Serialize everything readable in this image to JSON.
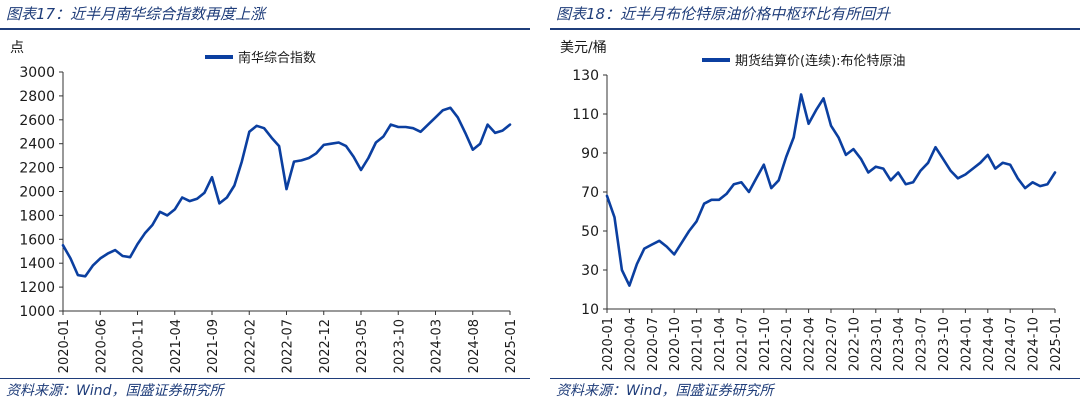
{
  "colors": {
    "accent": "#1f3d7a",
    "series": "#0b3fa0"
  },
  "panels": [
    {
      "title": "图表17：近半月南华综合指数再度上涨",
      "unit": "点",
      "source": "资料来源：Wind，国盛证券研究所"
    },
    {
      "title": "图表18：近半月布伦特原油价格中枢环比有所回升",
      "unit": "美元/桶",
      "source": "资料来源：Wind，国盛证券研究所"
    }
  ],
  "chart_data": [
    {
      "type": "line",
      "title": "",
      "xlabel": "",
      "ylabel": "点",
      "ylim": [
        1000,
        3000
      ],
      "yticks": [
        1000,
        1200,
        1400,
        1600,
        1800,
        2000,
        2200,
        2400,
        2600,
        2800,
        3000
      ],
      "xlim": [
        "2020-01",
        "2025-01"
      ],
      "xticks": [
        "2020-01",
        "2020-06",
        "2020-11",
        "2021-04",
        "2021-09",
        "2022-02",
        "2022-07",
        "2022-12",
        "2023-05",
        "2023-10",
        "2024-03",
        "2024-08",
        "2025-01"
      ],
      "legend": "top-center",
      "grid": false,
      "series": [
        {
          "name": "南华综合指数",
          "x": [
            "2020-01",
            "2020-02",
            "2020-03",
            "2020-04",
            "2020-05",
            "2020-06",
            "2020-07",
            "2020-08",
            "2020-09",
            "2020-10",
            "2020-11",
            "2020-12",
            "2021-01",
            "2021-02",
            "2021-03",
            "2021-04",
            "2021-05",
            "2021-06",
            "2021-07",
            "2021-08",
            "2021-09",
            "2021-10",
            "2021-11",
            "2021-12",
            "2022-01",
            "2022-02",
            "2022-03",
            "2022-04",
            "2022-05",
            "2022-06",
            "2022-07",
            "2022-08",
            "2022-09",
            "2022-10",
            "2022-11",
            "2022-12",
            "2023-01",
            "2023-02",
            "2023-03",
            "2023-04",
            "2023-05",
            "2023-06",
            "2023-07",
            "2023-08",
            "2023-09",
            "2023-10",
            "2023-11",
            "2023-12",
            "2024-01",
            "2024-02",
            "2024-03",
            "2024-04",
            "2024-05",
            "2024-06",
            "2024-07",
            "2024-08",
            "2024-09",
            "2024-10",
            "2024-11",
            "2024-12",
            "2025-01"
          ],
          "y": [
            1550,
            1440,
            1300,
            1290,
            1380,
            1440,
            1480,
            1510,
            1460,
            1450,
            1560,
            1650,
            1720,
            1830,
            1800,
            1850,
            1950,
            1920,
            1940,
            1990,
            2120,
            1900,
            1950,
            2050,
            2250,
            2500,
            2550,
            2530,
            2450,
            2380,
            2020,
            2250,
            2260,
            2280,
            2320,
            2390,
            2400,
            2410,
            2380,
            2290,
            2180,
            2280,
            2410,
            2460,
            2560,
            2540,
            2540,
            2530,
            2500,
            2560,
            2620,
            2680,
            2700,
            2620,
            2490,
            2350,
            2400,
            2560,
            2490,
            2510,
            2560
          ]
        }
      ]
    },
    {
      "type": "line",
      "title": "",
      "xlabel": "",
      "ylabel": "美元/桶",
      "ylim": [
        10,
        130
      ],
      "yticks": [
        10,
        30,
        50,
        70,
        90,
        110,
        130
      ],
      "xlim": [
        "2020-01",
        "2025-01"
      ],
      "xticks": [
        "2020-01",
        "2020-04",
        "2020-07",
        "2020-10",
        "2021-01",
        "2021-04",
        "2021-07",
        "2021-10",
        "2022-01",
        "2022-04",
        "2022-07",
        "2022-10",
        "2023-01",
        "2023-04",
        "2023-07",
        "2023-10",
        "2024-01",
        "2024-04",
        "2024-07",
        "2024-10",
        "2025-01"
      ],
      "legend": "top-center",
      "grid": false,
      "series": [
        {
          "name": "期货结算价(连续):布伦特原油",
          "x": [
            "2020-01",
            "2020-02",
            "2020-03",
            "2020-04",
            "2020-05",
            "2020-06",
            "2020-07",
            "2020-08",
            "2020-09",
            "2020-10",
            "2020-11",
            "2020-12",
            "2021-01",
            "2021-02",
            "2021-03",
            "2021-04",
            "2021-05",
            "2021-06",
            "2021-07",
            "2021-08",
            "2021-09",
            "2021-10",
            "2021-11",
            "2021-12",
            "2022-01",
            "2022-02",
            "2022-03",
            "2022-04",
            "2022-05",
            "2022-06",
            "2022-07",
            "2022-08",
            "2022-09",
            "2022-10",
            "2022-11",
            "2022-12",
            "2023-01",
            "2023-02",
            "2023-03",
            "2023-04",
            "2023-05",
            "2023-06",
            "2023-07",
            "2023-08",
            "2023-09",
            "2023-10",
            "2023-11",
            "2023-12",
            "2024-01",
            "2024-02",
            "2024-03",
            "2024-04",
            "2024-05",
            "2024-06",
            "2024-07",
            "2024-08",
            "2024-09",
            "2024-10",
            "2024-11",
            "2024-12",
            "2025-01"
          ],
          "y": [
            68,
            57,
            30,
            22,
            33,
            41,
            43,
            45,
            42,
            38,
            44,
            50,
            55,
            64,
            66,
            66,
            69,
            74,
            75,
            70,
            77,
            84,
            72,
            76,
            88,
            98,
            120,
            105,
            112,
            118,
            104,
            98,
            89,
            92,
            87,
            80,
            83,
            82,
            76,
            80,
            74,
            75,
            81,
            85,
            93,
            87,
            81,
            77,
            79,
            82,
            85,
            89,
            82,
            85,
            84,
            77,
            72,
            75,
            73,
            74,
            80
          ]
        }
      ]
    }
  ]
}
